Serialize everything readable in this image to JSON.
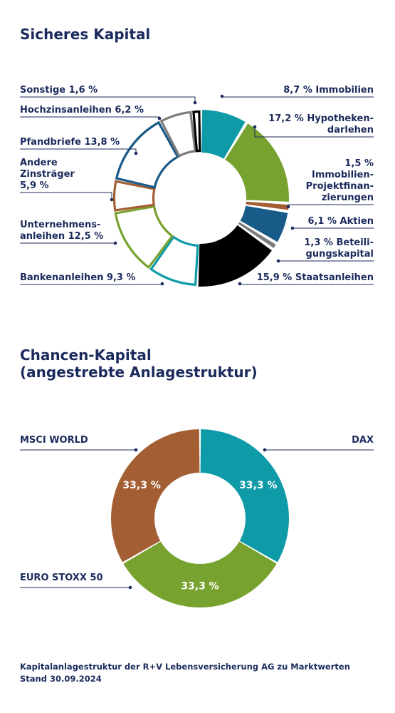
{
  "chart_data": [
    {
      "type": "donut",
      "title": "Sicheres Kapital",
      "unit": "%",
      "slices": [
        {
          "name": "Immobilien",
          "label": "8,7 % Immobilien",
          "value": 8.7,
          "color": "#0e9aa7",
          "style": "filled"
        },
        {
          "name": "Hypothekendarlehen",
          "label": "17,2 % Hypotheken-|darlehen",
          "value": 17.2,
          "color": "#78a22f",
          "style": "filled"
        },
        {
          "name": "Immobilien-Projektfinanzierungen",
          "label": "1,5 %|Immobilien-|Projektfinan-|zierungen",
          "value": 1.5,
          "color": "#a35f33",
          "style": "filled"
        },
        {
          "name": "Aktien",
          "label": "6,1 % Aktien",
          "value": 6.1,
          "color": "#185a88",
          "style": "filled"
        },
        {
          "name": "Beteiligungskapital",
          "label": "1,3 % Beteili-|gungskapital",
          "value": 1.3,
          "color": "#7b7b7b",
          "style": "filled"
        },
        {
          "name": "Staatsanleihen",
          "label": "15,9 % Staatsanleihen",
          "value": 15.9,
          "color": "#000000",
          "style": "filled"
        },
        {
          "name": "Bankenanleihen",
          "label": "Bankenanleihen 9,3 %",
          "value": 9.3,
          "color": "#0e9aa7",
          "style": "outline"
        },
        {
          "name": "Unternehmensanleihen",
          "label": "Unternehmens-|anleihen 12,5 %",
          "value": 12.5,
          "color": "#78a22f",
          "style": "outline"
        },
        {
          "name": "Andere Zinsträger",
          "label": "Andere|Zinsträger|5,9 %",
          "value": 5.9,
          "color": "#a35f33",
          "style": "outline"
        },
        {
          "name": "Pfandbriefe",
          "label": "Pfandbriefe 13,8 %",
          "value": 13.8,
          "color": "#185a88",
          "style": "outline"
        },
        {
          "name": "Hochzinsanleihen",
          "label": "Hochzinsanleihen 6,2 %",
          "value": 6.2,
          "color": "#7b7b7b",
          "style": "outline"
        },
        {
          "name": "Sonstige",
          "label": "Sonstige 1,6 %",
          "value": 1.6,
          "color": "#000000",
          "style": "outline"
        }
      ]
    },
    {
      "type": "donut",
      "title_lines": [
        "Chancen-Kapital",
        "(angestrebte Anlagestruktur)"
      ],
      "unit": "%",
      "slices": [
        {
          "name": "DAX",
          "label": "DAX",
          "value": 33.3,
          "value_label": "33,3 %",
          "color": "#0e9aa7"
        },
        {
          "name": "EURO STOXX 50",
          "label": "EURO STOXX 50",
          "value": 33.3,
          "value_label": "33,3 %",
          "color": "#78a22f"
        },
        {
          "name": "MSCI WORLD",
          "label": "MSCI WORLD",
          "value": 33.3,
          "value_label": "33,3 %",
          "color": "#a35f33"
        }
      ]
    }
  ],
  "footnote": {
    "line1": "Kapitalanlagestruktur der R+V Lebensversicherung AG zu Marktwerten",
    "line2": "Stand 30.09.2024"
  },
  "colors": {
    "text": "#1b2a5c",
    "leader": "#1b2a5c",
    "background": "#ffffff"
  }
}
